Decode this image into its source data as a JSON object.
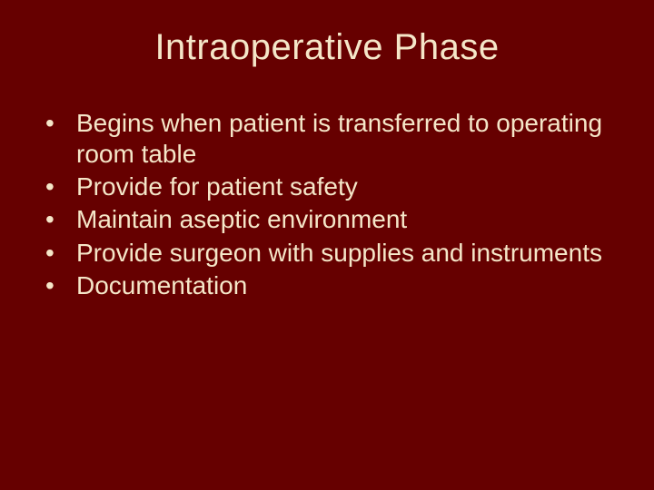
{
  "slide": {
    "background_color": "#660000",
    "text_color": "#f5e6c8",
    "title": "Intraoperative Phase",
    "title_fontsize": 40,
    "body_fontsize": 28,
    "bullets": [
      "Begins when patient is transferred to operating room table",
      "Provide for patient safety",
      "Maintain aseptic environment",
      "Provide surgeon with supplies and instruments",
      "Documentation"
    ]
  }
}
